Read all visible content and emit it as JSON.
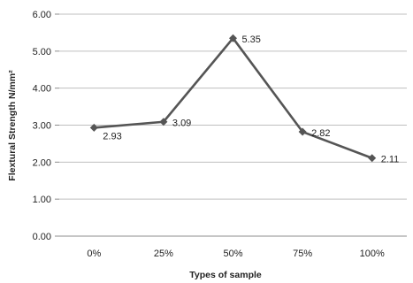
{
  "chart_data": {
    "type": "line",
    "categories": [
      "0%",
      "25%",
      "50%",
      "75%",
      "100%"
    ],
    "series": [
      {
        "values": [
          2.93,
          3.09,
          5.35,
          2.82,
          2.11
        ],
        "color": "#555555",
        "marker": "diamond"
      }
    ],
    "data_labels": [
      "2.93",
      "3.09",
      "5.35",
      "2.82",
      "2.11"
    ],
    "y_ticks": [
      "0.00",
      "1.00",
      "2.00",
      "3.00",
      "4.00",
      "5.00",
      "6.00"
    ],
    "ylim": [
      0,
      6
    ],
    "xlabel": "Types of sample",
    "ylabel": "Flextural Strength N/mm²",
    "grid": true,
    "legend": "none"
  }
}
